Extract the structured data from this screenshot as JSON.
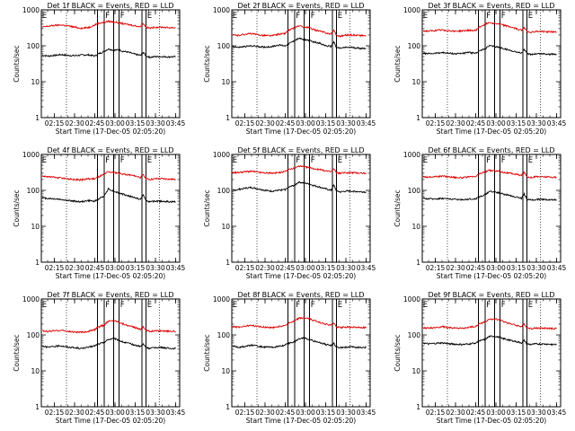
{
  "chart_data": {
    "type": "line",
    "layout": "3x3 grid",
    "yscale": "log",
    "ylim": [
      1,
      1000
    ],
    "y_ticks": [
      {
        "value": 1,
        "label": "1"
      },
      {
        "value": 10,
        "label": "10"
      },
      {
        "value": 100,
        "label": "100"
      },
      {
        "value": 1000,
        "label": "1000"
      }
    ],
    "xlim": [
      "02:05:20",
      "03:48:00"
    ],
    "x_ticks": [
      {
        "time": "02:15",
        "label": "02:15"
      },
      {
        "time": "02:30",
        "label": "02:30"
      },
      {
        "time": "02:45",
        "label": "02:45"
      },
      {
        "time": "03:00",
        "label": "03:00"
      },
      {
        "time": "03:15",
        "label": "03:15"
      },
      {
        "time": "03:30",
        "label": "03:30"
      },
      {
        "time": "03:45",
        "label": "03:45"
      }
    ],
    "xlabel": "Start Time (17-Dec-05 02:05:20)",
    "ylabel": "Counts/sec",
    "dotted_line_times": [
      "02:24",
      "03:33"
    ],
    "solid_line_times": [
      "02:47",
      "02:52",
      "02:59",
      "03:03",
      "03:20",
      "03:23"
    ],
    "interval_labels": [
      {
        "time": "02:05:30",
        "label": "E"
      },
      {
        "time": "02:52:30",
        "label": "F"
      },
      {
        "time": "03:03:30",
        "label": "F"
      },
      {
        "time": "03:23:30",
        "label": "E"
      }
    ],
    "x": [
      "02:06",
      "02:10",
      "02:15",
      "02:20",
      "02:25",
      "02:30",
      "02:35",
      "02:40",
      "02:45",
      "02:47",
      "02:52",
      "02:55",
      "02:59",
      "03:03",
      "03:05",
      "03:10",
      "03:15",
      "03:19",
      "03:21",
      "03:23",
      "03:26",
      "03:30",
      "03:35",
      "03:40",
      "03:45"
    ],
    "series_names": [
      "Events",
      "LLD"
    ],
    "series_colors": [
      "#000000",
      "#dd0000"
    ],
    "panels": [
      {
        "title": "Det 1f BLACK = Events, RED = LLD",
        "events": [
          55,
          52,
          54,
          57,
          54,
          53,
          55,
          56,
          52,
          58,
          70,
          82,
          75,
          78,
          72,
          66,
          58,
          54,
          66,
          52,
          48,
          50,
          50,
          49,
          50
        ],
        "lld": [
          330,
          350,
          370,
          380,
          360,
          330,
          310,
          320,
          380,
          420,
          450,
          480,
          460,
          440,
          420,
          390,
          360,
          340,
          420,
          330,
          310,
          330,
          330,
          320,
          320
        ]
      },
      {
        "title": "Det 2f BLACK = Events, RED = LLD",
        "events": [
          95,
          90,
          95,
          100,
          95,
          92,
          95,
          105,
          100,
          110,
          140,
          160,
          150,
          140,
          130,
          120,
          100,
          95,
          130,
          90,
          85,
          90,
          90,
          85,
          85
        ],
        "lld": [
          200,
          195,
          210,
          220,
          200,
          195,
          190,
          210,
          220,
          260,
          320,
          360,
          330,
          320,
          290,
          260,
          230,
          210,
          280,
          195,
          185,
          200,
          200,
          195,
          190
        ]
      },
      {
        "title": "Det 3f BLACK = Events, RED = LLD",
        "events": [
          62,
          60,
          62,
          65,
          62,
          60,
          62,
          65,
          62,
          70,
          82,
          100,
          95,
          90,
          85,
          75,
          68,
          62,
          80,
          60,
          58,
          60,
          60,
          58,
          58
        ],
        "lld": [
          260,
          255,
          265,
          275,
          265,
          255,
          260,
          270,
          265,
          320,
          400,
          450,
          420,
          400,
          380,
          340,
          300,
          270,
          330,
          250,
          240,
          250,
          250,
          245,
          240
        ]
      },
      {
        "title": "Det 4f BLACK = Events, RED = LLD",
        "events": [
          62,
          60,
          58,
          56,
          52,
          50,
          48,
          52,
          50,
          55,
          70,
          110,
          95,
          85,
          80,
          70,
          62,
          56,
          75,
          52,
          48,
          50,
          50,
          48,
          48
        ],
        "lld": [
          250,
          240,
          230,
          220,
          210,
          200,
          195,
          210,
          210,
          230,
          280,
          330,
          310,
          300,
          290,
          270,
          250,
          230,
          280,
          210,
          200,
          210,
          210,
          205,
          200
        ]
      },
      {
        "title": "Det 5f BLACK = Events, RED = LLD",
        "events": [
          100,
          105,
          115,
          120,
          110,
          100,
          95,
          100,
          105,
          120,
          140,
          170,
          160,
          150,
          140,
          125,
          110,
          100,
          140,
          95,
          90,
          95,
          95,
          92,
          90
        ],
        "lld": [
          310,
          315,
          330,
          340,
          320,
          305,
          300,
          310,
          330,
          370,
          420,
          470,
          450,
          430,
          410,
          380,
          350,
          330,
          400,
          310,
          300,
          310,
          310,
          305,
          300
        ]
      },
      {
        "title": "Det 6f BLACK = Events, RED = LLD",
        "events": [
          60,
          58,
          58,
          60,
          58,
          56,
          55,
          57,
          58,
          65,
          75,
          95,
          90,
          85,
          80,
          72,
          65,
          60,
          80,
          56,
          54,
          56,
          56,
          55,
          55
        ],
        "lld": [
          240,
          235,
          240,
          250,
          240,
          230,
          225,
          235,
          240,
          280,
          330,
          360,
          350,
          340,
          320,
          300,
          280,
          260,
          320,
          240,
          230,
          240,
          240,
          235,
          230
        ]
      },
      {
        "title": "Det 7f BLACK = Events, RED = LLD",
        "events": [
          50,
          45,
          48,
          50,
          46,
          44,
          42,
          45,
          50,
          55,
          62,
          75,
          80,
          72,
          65,
          58,
          52,
          48,
          55,
          45,
          42,
          45,
          45,
          42,
          42
        ],
        "lld": [
          130,
          125,
          130,
          135,
          125,
          120,
          118,
          125,
          140,
          160,
          190,
          240,
          250,
          230,
          210,
          180,
          160,
          145,
          170,
          135,
          125,
          130,
          130,
          128,
          125
        ]
      },
      {
        "title": "Det 8f BLACK = Events, RED = LLD",
        "events": [
          50,
          45,
          48,
          52,
          48,
          46,
          45,
          48,
          52,
          58,
          65,
          78,
          82,
          75,
          70,
          62,
          55,
          50,
          58,
          46,
          44,
          46,
          46,
          45,
          45
        ],
        "lld": [
          170,
          165,
          175,
          185,
          170,
          165,
          160,
          170,
          185,
          210,
          240,
          290,
          300,
          280,
          260,
          230,
          200,
          185,
          210,
          170,
          160,
          165,
          165,
          160,
          160
        ]
      },
      {
        "title": "Det 9f BLACK = Events, RED = LLD",
        "events": [
          60,
          56,
          58,
          60,
          57,
          55,
          54,
          56,
          60,
          66,
          75,
          90,
          92,
          85,
          80,
          72,
          65,
          60,
          70,
          56,
          54,
          56,
          56,
          55,
          54
        ],
        "lld": [
          160,
          155,
          160,
          170,
          160,
          155,
          152,
          160,
          175,
          200,
          230,
          270,
          280,
          260,
          240,
          210,
          185,
          170,
          200,
          160,
          150,
          155,
          155,
          152,
          150
        ]
      }
    ]
  }
}
